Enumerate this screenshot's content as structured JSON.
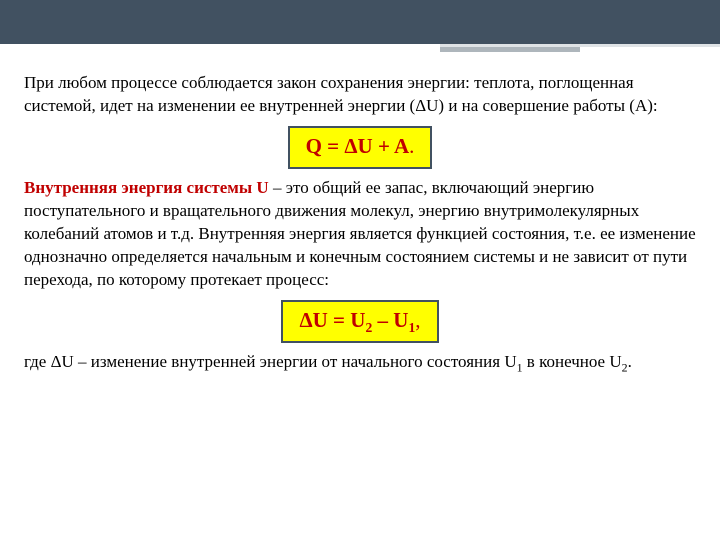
{
  "colors": {
    "header_band": "#415161",
    "accent_thin": "#dfe3e6",
    "accent_mid": "#aeb6bc",
    "body_text": "#000000",
    "emphasis_red": "#c00000",
    "formula_bg": "#ffff00",
    "formula_border": "#415161",
    "formula_text": "#c00000"
  },
  "p1": "При любом процессе соблюдается закон сохранения энергии: теплота, поглощенная системой, идет на изменении ее внутренней энергии (ΔU) и на совершение работы (А):",
  "formula1": "Q = ΔU + A",
  "p2_strong": "Внутренняя энергия системы U",
  "p2_rest": " – это общий ее запас, включающий энергию поступательного и вращательного движения молекул, энергию внутримолекулярных колебаний атомов и т.д. Внутренняя энергия является функцией состояния, т.е. ее изменение однозначно определяется начальным и конечным состоянием системы и не зависит от пути перехода, по которому протекает процесс:",
  "formula2_a": "ΔU = U",
  "formula2_s1": "2",
  "formula2_b": " – U",
  "formula2_s2": "1",
  "formula2_c": ",",
  "p3_a": "где ΔU – изменение внутренней энергии от начального состояния U",
  "p3_s1": "1",
  "p3_b": " в конечное U",
  "p3_s2": "2",
  "p3_c": "."
}
